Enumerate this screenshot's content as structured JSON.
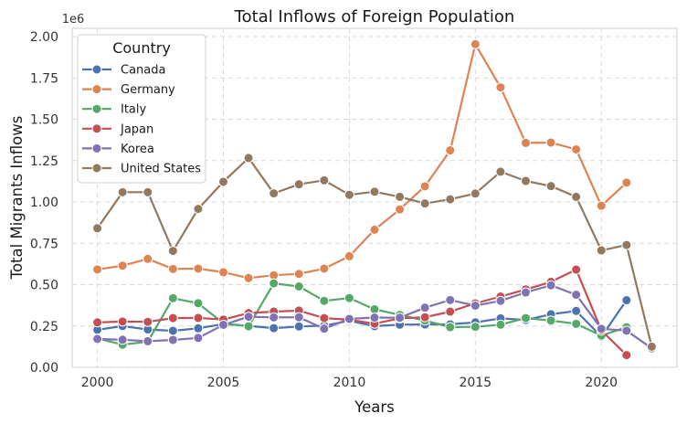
{
  "chart_data": {
    "type": "line",
    "title": "Total Inflows of Foreign Population",
    "xlabel": "Years",
    "ylabel": "Total Migrants Inflows",
    "y_offset_label": "1e6",
    "xlim": [
      1999,
      2023
    ],
    "ylim": [
      0,
      2.05
    ],
    "x_ticks": [
      2000,
      2005,
      2010,
      2015,
      2020
    ],
    "x_tick_labels": [
      "2000",
      "2005",
      "2010",
      "2015",
      "2020"
    ],
    "y_ticks": [
      0,
      0.25,
      0.5,
      0.75,
      1.0,
      1.25,
      1.5,
      1.75,
      2.0
    ],
    "y_tick_labels": [
      "0.00",
      "0.25",
      "0.50",
      "0.75",
      "1.00",
      "1.25",
      "1.50",
      "1.75",
      "2.00"
    ],
    "grid": true,
    "legend": {
      "title": "Country",
      "position": "top-left"
    },
    "x": [
      2000,
      2001,
      2002,
      2003,
      2004,
      2005,
      2006,
      2007,
      2008,
      2009,
      2010,
      2011,
      2012,
      2013,
      2014,
      2015,
      2016,
      2017,
      2018,
      2019,
      2020,
      2021,
      2022
    ],
    "series": [
      {
        "name": "Canada",
        "color": "#4c72b0",
        "values": [
          0.227,
          0.25,
          0.229,
          0.221,
          0.236,
          0.262,
          0.251,
          0.237,
          0.247,
          0.252,
          0.281,
          0.249,
          0.258,
          0.259,
          0.26,
          0.272,
          0.296,
          0.286,
          0.321,
          0.341,
          0.185,
          0.406,
          null
        ]
      },
      {
        "name": "Germany",
        "color": "#dd8452",
        "values": [
          0.592,
          0.615,
          0.656,
          0.595,
          0.597,
          0.575,
          0.54,
          0.557,
          0.565,
          0.597,
          0.672,
          0.832,
          0.955,
          1.095,
          1.312,
          1.954,
          1.693,
          1.357,
          1.359,
          1.318,
          0.977,
          1.117,
          null
        ]
      },
      {
        "name": "Italy",
        "color": "#55a868",
        "values": [
          0.175,
          0.137,
          0.155,
          0.418,
          0.388,
          0.266,
          0.248,
          0.508,
          0.489,
          0.402,
          0.419,
          0.351,
          0.317,
          0.283,
          0.243,
          0.245,
          0.258,
          0.298,
          0.283,
          0.263,
          0.192,
          0.243,
          null
        ]
      },
      {
        "name": "Japan",
        "color": "#c44e52",
        "values": [
          0.272,
          0.277,
          0.275,
          0.298,
          0.299,
          0.289,
          0.328,
          0.337,
          0.343,
          0.298,
          0.288,
          0.264,
          0.296,
          0.303,
          0.337,
          0.387,
          0.428,
          0.471,
          0.517,
          0.591,
          0.223,
          0.074,
          null
        ]
      },
      {
        "name": "Korea",
        "color": "#8172b3",
        "values": [
          0.172,
          0.167,
          0.158,
          0.166,
          0.178,
          0.257,
          0.306,
          0.302,
          0.303,
          0.234,
          0.293,
          0.301,
          0.3,
          0.361,
          0.407,
          0.373,
          0.402,
          0.453,
          0.496,
          0.439,
          0.233,
          0.222,
          0.115
        ]
      },
      {
        "name": "United States",
        "color": "#937860",
        "values": [
          0.841,
          1.059,
          1.059,
          0.704,
          0.958,
          1.122,
          1.266,
          1.052,
          1.107,
          1.131,
          1.043,
          1.062,
          1.031,
          0.991,
          1.016,
          1.051,
          1.183,
          1.127,
          1.096,
          1.031,
          0.707,
          0.74,
          0.125
        ]
      }
    ]
  }
}
